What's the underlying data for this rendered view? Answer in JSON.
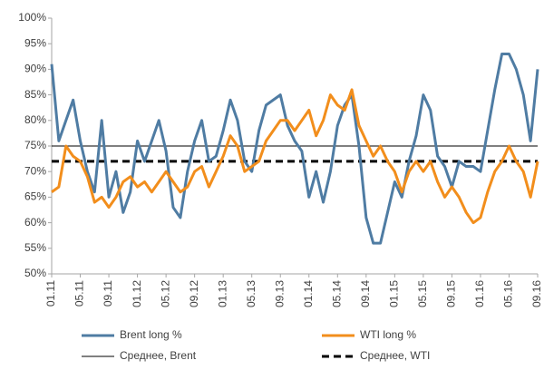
{
  "chart_data": {
    "type": "line",
    "categories": [
      "01.11",
      null,
      null,
      null,
      "05.11",
      null,
      null,
      null,
      "09.11",
      null,
      null,
      null,
      "01.12",
      null,
      null,
      null,
      "05.12",
      null,
      null,
      null,
      "09.12",
      null,
      null,
      null,
      "01.13",
      null,
      null,
      null,
      "05.13",
      null,
      null,
      null,
      "09.13",
      null,
      null,
      null,
      "01.14",
      null,
      null,
      null,
      "05.14",
      null,
      null,
      null,
      "09.14",
      null,
      null,
      null,
      "01.15",
      null,
      null,
      null,
      "05.15",
      null,
      null,
      null,
      "09.15",
      null,
      null,
      null,
      "01.16",
      null,
      null,
      null,
      "05.16",
      null,
      null,
      null,
      "09.16"
    ],
    "series": [
      {
        "name": "Brent long %",
        "color": "#4f7ca3",
        "values": [
          91,
          76,
          80,
          84,
          76,
          70,
          66,
          80,
          65,
          70,
          62,
          66,
          76,
          72,
          76,
          80,
          74,
          63,
          61,
          70,
          76,
          80,
          72,
          73,
          78,
          84,
          80,
          72,
          70,
          78,
          83,
          84,
          85,
          79,
          76,
          74,
          65,
          70,
          64,
          70,
          79,
          83,
          85,
          75,
          61,
          56,
          56,
          62,
          68,
          65,
          72,
          77,
          85,
          82,
          73,
          71,
          67,
          72,
          71,
          71,
          70,
          78,
          86,
          93,
          93,
          90,
          85,
          76,
          90
        ]
      },
      {
        "name": "WTI long %",
        "color": "#f28e1c",
        "values": [
          66,
          67,
          75,
          73,
          72,
          69,
          64,
          65,
          63,
          65,
          68,
          69,
          67,
          68,
          66,
          68,
          70,
          68,
          66,
          67,
          70,
          71,
          67,
          70,
          73,
          77,
          75,
          70,
          71,
          72,
          76,
          78,
          80,
          80,
          78,
          80,
          82,
          77,
          80,
          85,
          83,
          82,
          86,
          79,
          76,
          73,
          75,
          72,
          70,
          66,
          70,
          72,
          70,
          72,
          68,
          65,
          67,
          65,
          62,
          60,
          61,
          66,
          70,
          72,
          75,
          72,
          70,
          65,
          72
        ]
      }
    ],
    "averages": [
      {
        "name": "Среднее, Brent",
        "value": 75,
        "color": "#000000",
        "dash": false
      },
      {
        "name": "Среднее, WTI",
        "value": 72,
        "color": "#000000",
        "dash": true
      }
    ],
    "ylim": [
      50,
      100
    ],
    "yticks": [
      {
        "value": 50,
        "label": "50%"
      },
      {
        "value": 55,
        "label": "55%"
      },
      {
        "value": 60,
        "label": "60%"
      },
      {
        "value": 65,
        "label": "65%"
      },
      {
        "value": 70,
        "label": "70%"
      },
      {
        "value": 75,
        "label": "75%"
      },
      {
        "value": 80,
        "label": "80%"
      },
      {
        "value": 85,
        "label": "85%"
      },
      {
        "value": 90,
        "label": "90%"
      },
      {
        "value": 95,
        "label": "95%"
      },
      {
        "value": 100,
        "label": "100%"
      }
    ],
    "grid": false
  }
}
